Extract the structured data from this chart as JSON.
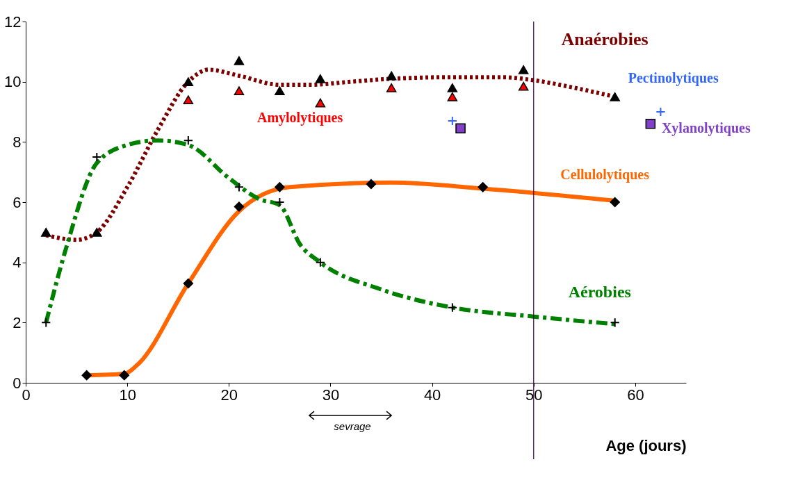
{
  "chart_data": {
    "type": "line",
    "xlabel": "Age (jours)",
    "xlim": [
      0,
      65
    ],
    "xticks": [
      0,
      10,
      20,
      30,
      40,
      50,
      60
    ],
    "ylim": [
      0,
      12
    ],
    "yticks": [
      0,
      2,
      4,
      6,
      8,
      10,
      12
    ],
    "grid": false,
    "ref_lines": [
      {
        "axis": "x",
        "value": 50,
        "color": "#400040"
      }
    ],
    "annotations": [
      "sevrage"
    ],
    "series": [
      {
        "name": "Anaérobies",
        "color": "#7b0000",
        "line_style": "dotted",
        "marker": "none",
        "x": [
          2,
          5,
          7,
          10,
          13,
          16,
          18,
          21,
          25,
          28,
          32,
          36,
          42,
          47,
          50,
          54,
          58
        ],
        "values": [
          4.9,
          4.75,
          5.0,
          6.5,
          8.4,
          10.0,
          10.4,
          10.2,
          9.9,
          9.9,
          10.0,
          10.1,
          10.15,
          10.15,
          10.05,
          9.8,
          9.5
        ]
      },
      {
        "type": "scatter",
        "color": "#000000",
        "marker": "triangle",
        "x": [
          2,
          7,
          16,
          21,
          25,
          29,
          36,
          42,
          49,
          58
        ],
        "values": [
          5.0,
          5.0,
          10.0,
          10.7,
          9.7,
          10.1,
          10.2,
          9.8,
          10.4,
          9.5
        ]
      },
      {
        "name": "Amylolytiques",
        "type": "scatter",
        "color": "#ff0000",
        "marker": "triangle",
        "x": [
          16,
          21,
          29,
          36,
          42,
          49
        ],
        "values": [
          9.4,
          9.7,
          9.3,
          9.8,
          9.5,
          9.85
        ]
      },
      {
        "name": "Pectinolytiques",
        "type": "scatter",
        "color": "#3366ff",
        "marker": "cross",
        "x": [
          42,
          62.5
        ],
        "values": [
          8.7,
          9.0
        ]
      },
      {
        "name": "Xylanolytiques",
        "type": "scatter",
        "color": "#8040c8",
        "marker": "square",
        "x": [
          42.8,
          61.5
        ],
        "values": [
          8.45,
          8.6
        ]
      },
      {
        "name": "Cellulolytiques",
        "color": "#ff6600",
        "line_style": "solid",
        "marker": "none",
        "x": [
          6,
          9.7,
          11,
          16,
          21,
          26,
          36,
          45,
          58
        ],
        "values": [
          0.25,
          0.3,
          0.6,
          3.3,
          5.7,
          6.5,
          6.65,
          6.45,
          6.05
        ]
      },
      {
        "type": "scatter",
        "color": "#000000",
        "marker": "diamond",
        "x": [
          6,
          9.7,
          16,
          21,
          25,
          34,
          45,
          58
        ],
        "values": [
          0.25,
          0.25,
          3.3,
          5.85,
          6.5,
          6.6,
          6.5,
          6.0
        ]
      },
      {
        "name": "Aérobies",
        "color": "#008000",
        "line_style": "dashed",
        "marker": "none",
        "x": [
          2,
          4,
          7,
          10,
          13,
          16,
          20,
          23,
          25,
          27,
          29,
          35,
          42,
          50,
          58
        ],
        "values": [
          2.0,
          4.5,
          7.3,
          7.9,
          8.05,
          7.9,
          6.8,
          6.1,
          5.9,
          4.6,
          4.0,
          3.1,
          2.5,
          2.2,
          1.95
        ]
      },
      {
        "type": "scatter",
        "color": "#000000",
        "marker": "cross",
        "x": [
          2,
          7,
          16,
          21,
          25,
          29,
          42,
          58
        ],
        "values": [
          2.0,
          7.5,
          8.05,
          6.5,
          6.0,
          4.0,
          2.5,
          2.0
        ]
      }
    ]
  }
}
